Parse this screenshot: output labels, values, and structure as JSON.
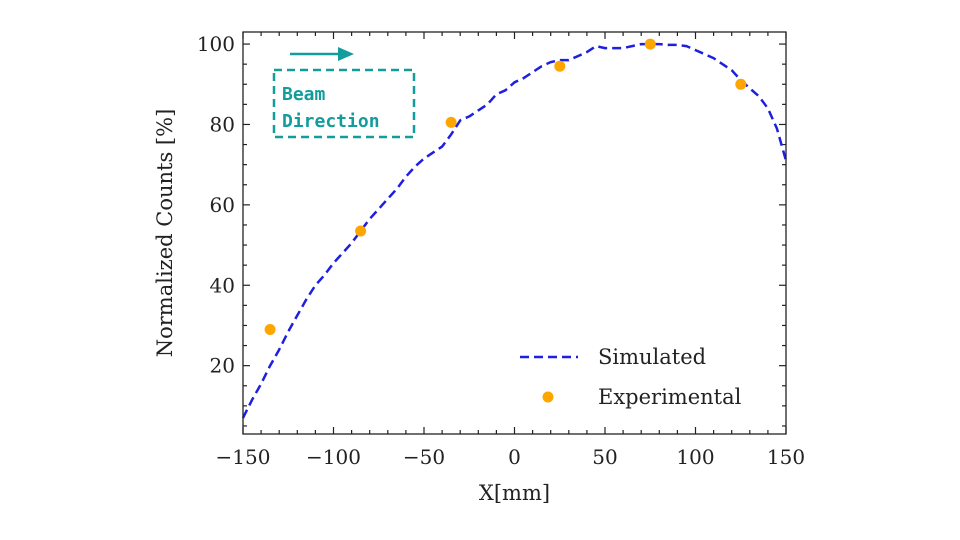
{
  "chart_data": {
    "type": "line",
    "title": "",
    "xlabel": "X[mm]",
    "ylabel": "Normalized Counts [%]",
    "xlim": [
      -150,
      150
    ],
    "ylim": [
      3,
      103
    ],
    "x_ticks": [
      -150,
      -100,
      -50,
      0,
      50,
      100,
      150
    ],
    "y_ticks": [
      20,
      40,
      60,
      80,
      100
    ],
    "x_tick_labels": [
      "−150",
      "−100",
      "−50",
      "0",
      "50",
      "100",
      "150"
    ],
    "y_tick_labels": [
      "20",
      "40",
      "60",
      "80",
      "100"
    ],
    "grid": false,
    "legend_position": "bottom-right",
    "series": [
      {
        "name": "Simulated",
        "style": "dashed-line",
        "color": "#1f1fe0",
        "x": [
          -150,
          -145,
          -140,
          -135,
          -130,
          -125,
          -120,
          -115,
          -110,
          -105,
          -100,
          -95,
          -90,
          -85,
          -80,
          -75,
          -70,
          -65,
          -60,
          -55,
          -50,
          -45,
          -40,
          -35,
          -30,
          -25,
          -20,
          -15,
          -10,
          -5,
          0,
          5,
          10,
          15,
          20,
          25,
          30,
          35,
          40,
          45,
          50,
          55,
          60,
          65,
          70,
          75,
          80,
          85,
          90,
          95,
          100,
          105,
          110,
          115,
          120,
          125,
          130,
          135,
          140,
          145,
          150
        ],
        "y": [
          7,
          11.5,
          15.5,
          20,
          24,
          28.5,
          32.5,
          36.5,
          40,
          42.5,
          45.5,
          48,
          50.5,
          53.5,
          56.5,
          59,
          61.5,
          64,
          67,
          69.5,
          71.5,
          73,
          74.5,
          77.5,
          81,
          82,
          83.5,
          85,
          87.5,
          88.5,
          90.5,
          91.5,
          93,
          94.5,
          95.5,
          96,
          96,
          97,
          98,
          99.5,
          99,
          99,
          99,
          99.5,
          100,
          100,
          100,
          99.8,
          99.8,
          99.5,
          98.5,
          97.5,
          96.5,
          95,
          93.5,
          91,
          89,
          87,
          84,
          79,
          71
        ]
      },
      {
        "name": "Experimental",
        "style": "markers",
        "color": "#ffa500",
        "x": [
          -135,
          -85,
          -35,
          25,
          75,
          125
        ],
        "y": [
          29,
          53.5,
          80.5,
          94.5,
          100,
          90
        ]
      }
    ],
    "annotation": {
      "text_lines": [
        "Beam",
        "Direction"
      ],
      "color": "#129c9c",
      "arrow": "right"
    }
  }
}
